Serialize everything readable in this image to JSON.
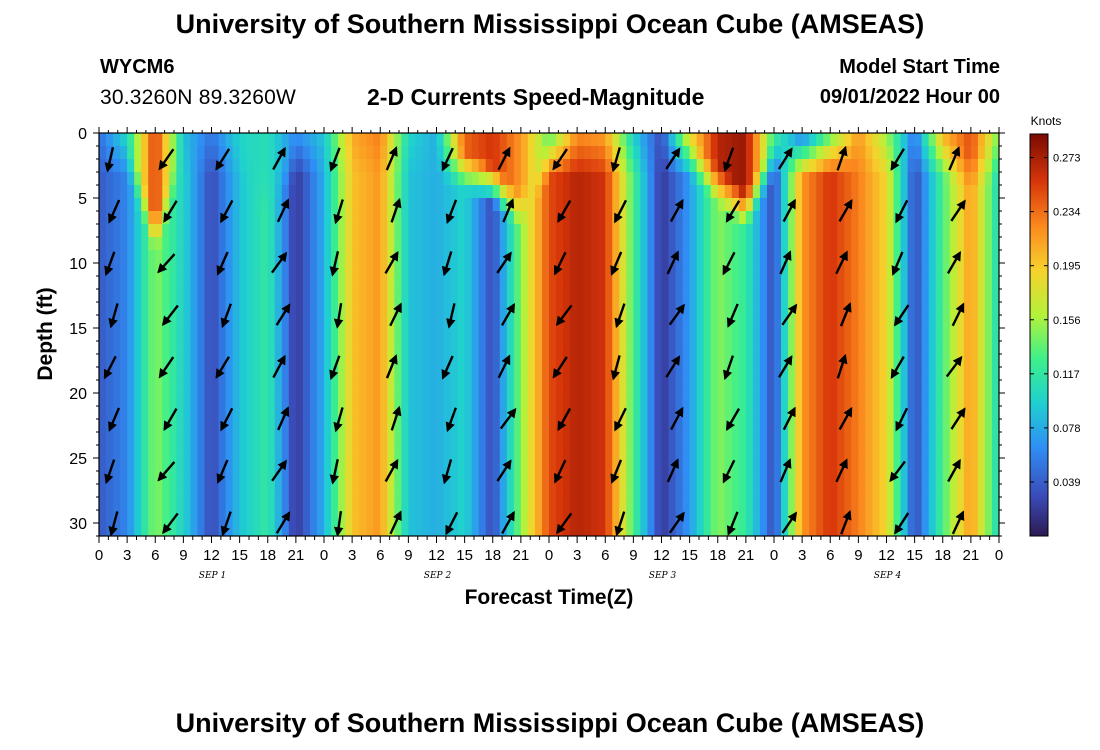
{
  "header": {
    "title": "University of Southern Mississippi Ocean Cube (AMSEAS)",
    "station": "WYCM6",
    "coords": "30.3260N  89.3260W",
    "subtitle": "2-D Currents Speed-Magnitude",
    "model_start_label": "Model Start Time",
    "model_start_value": "09/01/2022 Hour 00",
    "bottom_title": "University of Southern Mississippi Ocean Cube (AMSEAS)"
  },
  "chart_data": {
    "type": "heatmap",
    "xlabel": "Forecast Time(Z)",
    "ylabel": "Depth (ft)",
    "x_range_hours": [
      0,
      96
    ],
    "y_range_ft": [
      0,
      31
    ],
    "y_reversed": true,
    "x_tick_labels": [
      "0",
      "3",
      "6",
      "9",
      "12",
      "15",
      "18",
      "21",
      "0",
      "3",
      "6",
      "9",
      "12",
      "15",
      "18",
      "21",
      "0",
      "3",
      "6",
      "9",
      "12",
      "15",
      "18",
      "21",
      "0",
      "3",
      "6",
      "9",
      "12",
      "15",
      "18",
      "21",
      "0"
    ],
    "day_labels": [
      {
        "label": "SEP 1",
        "hour": 12
      },
      {
        "label": "SEP 2",
        "hour": 36
      },
      {
        "label": "SEP 3",
        "hour": 60
      },
      {
        "label": "SEP 4",
        "hour": 84
      }
    ],
    "y_ticks": [
      0,
      5,
      10,
      15,
      20,
      25,
      30
    ],
    "colorbar": {
      "unit": "Knots",
      "range": [
        0,
        0.29
      ],
      "ticks": [
        "0.273",
        "0.234",
        "0.195",
        "0.156",
        "0.117",
        "0.078",
        "0.039"
      ],
      "tick_values": [
        0.273,
        0.234,
        0.195,
        0.156,
        0.117,
        0.078,
        0.039
      ]
    },
    "time_hours": [
      0,
      3,
      6,
      9,
      12,
      15,
      18,
      21,
      24,
      27,
      30,
      33,
      36,
      39,
      42,
      45,
      48,
      51,
      54,
      57,
      60,
      63,
      66,
      69,
      72,
      75,
      78,
      81,
      84,
      87,
      90,
      93,
      96
    ],
    "deep_speed": [
      0.04,
      0.06,
      0.15,
      0.1,
      0.03,
      0.09,
      0.12,
      0.02,
      0.08,
      0.2,
      0.22,
      0.09,
      0.08,
      0.1,
      0.03,
      0.15,
      0.25,
      0.27,
      0.26,
      0.13,
      0.02,
      0.07,
      0.15,
      0.12,
      0.03,
      0.22,
      0.26,
      0.23,
      0.19,
      0.03,
      0.13,
      0.22,
      0.1
    ],
    "surface_speed": [
      0.05,
      0.1,
      0.26,
      0.09,
      0.05,
      0.1,
      0.11,
      0.06,
      0.09,
      0.21,
      0.23,
      0.1,
      0.08,
      0.24,
      0.26,
      0.22,
      0.14,
      0.23,
      0.22,
      0.1,
      0.03,
      0.18,
      0.27,
      0.28,
      0.12,
      0.07,
      0.15,
      0.22,
      0.16,
      0.05,
      0.2,
      0.25,
      0.14
    ],
    "surface_layer_depth_ft": [
      2,
      2,
      8,
      2,
      2,
      2,
      5,
      2,
      2,
      2,
      2,
      2,
      2,
      3,
      4,
      6,
      2,
      2,
      2,
      2,
      2,
      2,
      4,
      6,
      2,
      2,
      2,
      2,
      2,
      2,
      2,
      3,
      2
    ],
    "vector_depths_ft": [
      2,
      6,
      10,
      14,
      18,
      22,
      26,
      30
    ],
    "vector_direction_deg_at_6h_steps": [
      200,
      215,
      205,
      30,
      195,
      25,
      200,
      30,
      210,
      200,
      30,
      205,
      30,
      25,
      210,
      30,
      215
    ]
  },
  "colors": {
    "colormap": [
      "#2b1a52",
      "#3b4bb8",
      "#2f8ef5",
      "#1fd0d0",
      "#3df08a",
      "#b4f23a",
      "#f7d22c",
      "#fb8a1e",
      "#d8360a",
      "#7a0b03"
    ],
    "arrow": "#000000",
    "axis": "#000000"
  }
}
